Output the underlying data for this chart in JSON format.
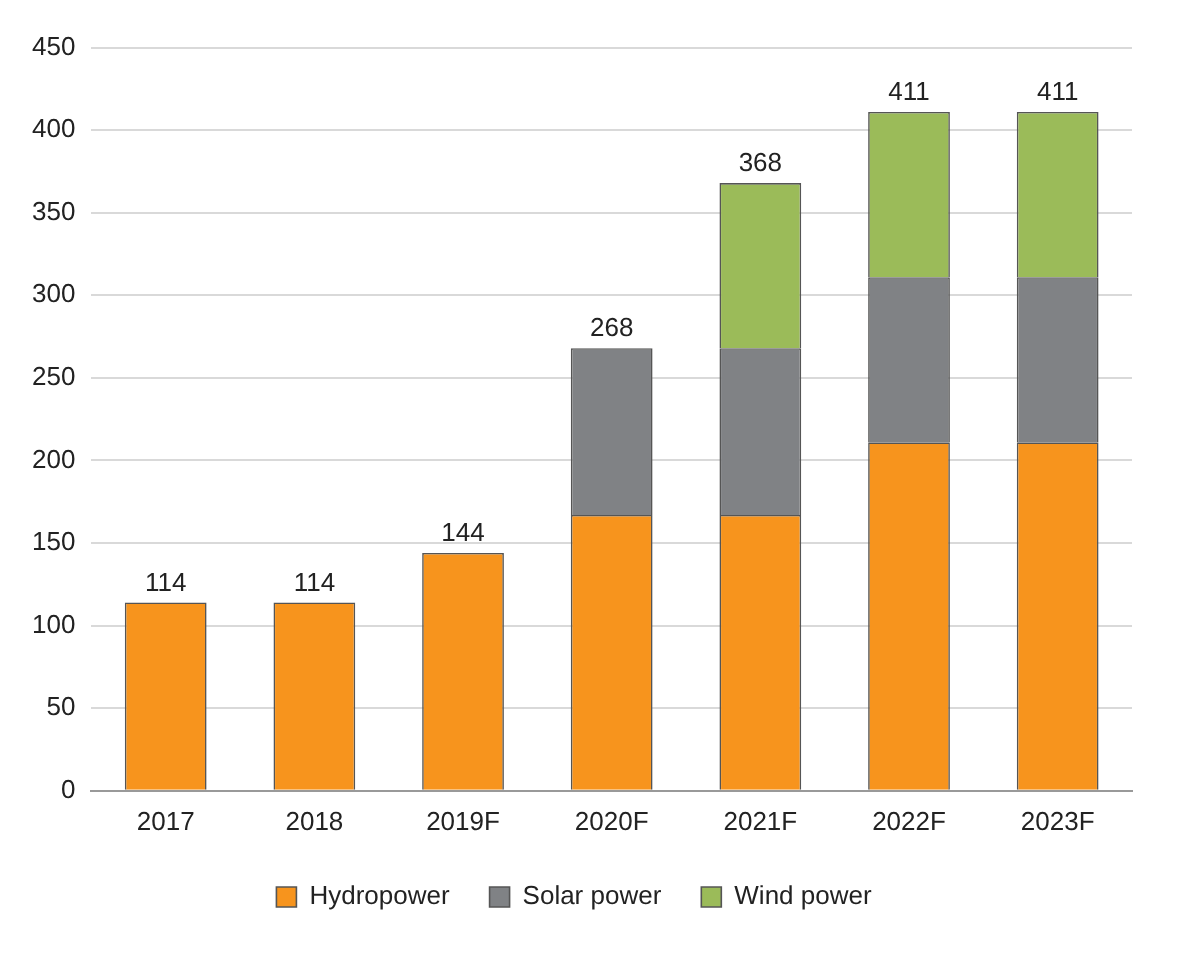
{
  "chart_data": {
    "type": "bar",
    "stacked": true,
    "categories": [
      "2017",
      "2018",
      "2019F",
      "2020F",
      "2021F",
      "2022F",
      "2023F"
    ],
    "series": [
      {
        "name": "Hydropower",
        "color": "#f7941d",
        "values": [
          114,
          114,
          144,
          167,
          167,
          211,
          211
        ]
      },
      {
        "name": "Solar power",
        "color": "#808285",
        "values": [
          null,
          null,
          null,
          101,
          101,
          100,
          100
        ]
      },
      {
        "name": "Wind power",
        "color": "#9bbb59",
        "values": [
          null,
          null,
          null,
          null,
          100,
          100,
          100
        ]
      }
    ],
    "totals": [
      "114",
      "114",
      "144",
      "268",
      "368",
      "411",
      "411"
    ],
    "ylim": [
      0,
      450
    ],
    "yticks": [
      0,
      50,
      100,
      150,
      200,
      250,
      300,
      350,
      400,
      450
    ],
    "grid": "y",
    "legend": "bottom"
  }
}
